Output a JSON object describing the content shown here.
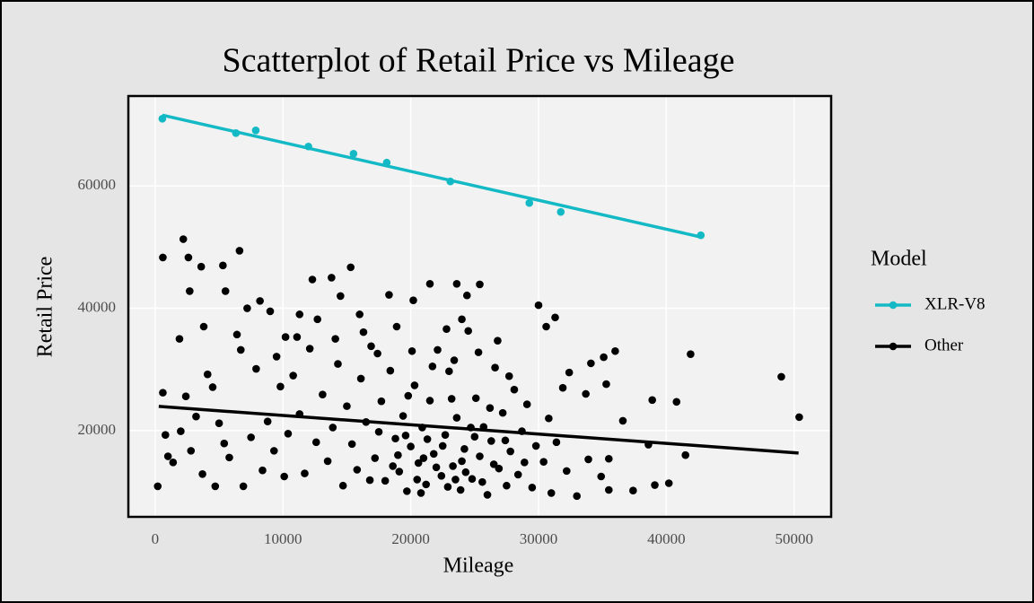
{
  "chart_data": {
    "type": "scatter",
    "title": "Scatterplot of Retail Price vs Mileage",
    "x_label": "Mileage",
    "y_label": "Retail Price",
    "legend_title": "Model",
    "xlim": [
      -2100,
      52900
    ],
    "xticks": [
      0,
      10000,
      20000,
      30000,
      40000,
      50000
    ],
    "ylim": [
      5900,
      74700
    ],
    "yticks": [
      20000,
      40000,
      60000
    ],
    "grid": true,
    "series": [
      {
        "name": "XLR-V8",
        "color": "#13b9c4",
        "x": [
          560,
          6320,
          7870,
          11990,
          15520,
          18120,
          23100,
          29280,
          31740,
          42700
        ],
        "values": [
          70990,
          68640,
          69080,
          66450,
          65270,
          63810,
          60730,
          57220,
          55750,
          51940
        ],
        "trend": {
          "x": [
            560,
            42700
          ],
          "values": [
            71570,
            51650
          ]
        }
      },
      {
        "name": "Other",
        "color": "#000000",
        "x": [
          200,
          600,
          600,
          2200,
          6600,
          2600,
          3600,
          5300,
          1900,
          5500,
          2700,
          3800,
          7200,
          8200,
          9000,
          10200,
          11300,
          12300,
          13800,
          14500,
          15300,
          16000,
          18300,
          20200,
          21500,
          23600,
          24400,
          25400,
          30000,
          31300,
          30600,
          34100,
          35100,
          36000,
          33700,
          35300,
          36600,
          38900,
          40800,
          41900,
          41500,
          40200,
          39100,
          37400,
          35500,
          34900,
          33900,
          35500,
          32400,
          31900,
          49000,
          50400,
          38600,
          33000,
          31000,
          29500,
          800,
          1000,
          1400,
          2000,
          2400,
          2800,
          3200,
          3700,
          4100,
          4500,
          4700,
          5000,
          5400,
          5800,
          6400,
          6700,
          6900,
          7500,
          7900,
          8400,
          8800,
          9300,
          9800,
          10100,
          10400,
          10800,
          11300,
          11700,
          12100,
          12600,
          13100,
          13500,
          13900,
          14300,
          14700,
          15000,
          15400,
          15800,
          16100,
          16500,
          16900,
          17200,
          17700,
          18000,
          18400,
          18800,
          19100,
          19400,
          19700,
          20000,
          20300,
          20600,
          20900,
          21200,
          21500,
          21800,
          22100,
          22400,
          22700,
          23000,
          23300,
          23600,
          23900,
          24200,
          24500,
          24800,
          25100,
          25400,
          25700,
          26000,
          26300,
          26600,
          26900,
          27200,
          27500,
          27800,
          28100,
          28400,
          28700,
          19000,
          20500,
          21000,
          22000,
          22500,
          23500,
          24000,
          25000,
          26500,
          21700,
          19800,
          23200,
          24700,
          18600,
          17500,
          16800,
          26200,
          27400,
          22900,
          25600,
          20800,
          24300,
          21300,
          19600,
          28900,
          29800,
          30400,
          31400,
          32200,
          30800,
          29100,
          27700,
          26800,
          25300,
          24000,
          22800,
          23400,
          20100,
          18900,
          17400,
          16300,
          14100,
          12700,
          11100,
          9500
        ],
        "values": [
          10900,
          48300,
          26200,
          51300,
          49400,
          48300,
          46800,
          47000,
          35000,
          42800,
          42800,
          37000,
          40000,
          41200,
          39500,
          35300,
          39000,
          44700,
          45000,
          42000,
          46700,
          39000,
          42200,
          41300,
          44000,
          44000,
          42100,
          43900,
          40500,
          38500,
          37000,
          31000,
          32000,
          33000,
          26000,
          27600,
          21600,
          25000,
          24700,
          32500,
          16000,
          11400,
          11100,
          10200,
          10300,
          12500,
          15300,
          15400,
          29500,
          27000,
          28800,
          22200,
          17700,
          9300,
          9800,
          10700,
          19300,
          15800,
          14800,
          19900,
          25600,
          16700,
          22300,
          12900,
          29200,
          27100,
          10900,
          21200,
          17900,
          15600,
          35700,
          33200,
          10900,
          18900,
          30100,
          13500,
          21500,
          16700,
          27200,
          12500,
          19500,
          29000,
          22700,
          13000,
          33400,
          18100,
          25900,
          15000,
          20500,
          30900,
          11000,
          24000,
          17800,
          13600,
          28500,
          21400,
          33800,
          15500,
          24800,
          11800,
          29800,
          18700,
          13300,
          22400,
          10100,
          17400,
          27400,
          14700,
          20500,
          11200,
          24900,
          16200,
          33200,
          12600,
          19300,
          29700,
          14200,
          22100,
          10300,
          17000,
          36300,
          12100,
          25300,
          15800,
          20600,
          9500,
          18300,
          30300,
          13800,
          22900,
          11000,
          16600,
          26700,
          12800,
          19900,
          16000,
          12000,
          15500,
          14000,
          17500,
          12000,
          15000,
          19000,
          14500,
          30500,
          25700,
          25200,
          20500,
          14200,
          19800,
          11900,
          23700,
          18400,
          10800,
          11600,
          9800,
          13200,
          18600,
          19200,
          14800,
          17500,
          14900,
          18100,
          13400,
          22000,
          24300,
          28900,
          34700,
          32800,
          38200,
          36600,
          31500,
          33000,
          37000,
          32600,
          36100,
          35000,
          38200,
          35300,
          32100
        ],
        "trend": {
          "x": [
            280,
            50350
          ],
          "values": [
            23960,
            16340
          ]
        }
      }
    ]
  }
}
